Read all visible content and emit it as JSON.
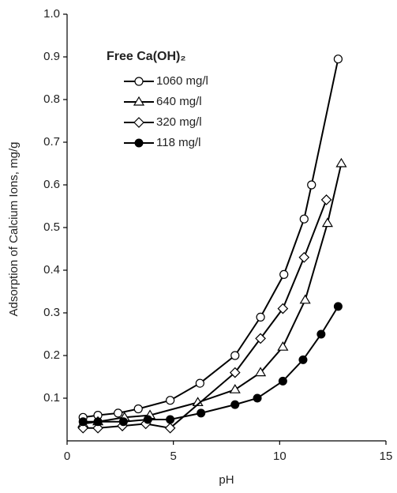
{
  "chart_data": {
    "type": "line",
    "xlabel": "pH",
    "ylabel": "Adsorption of Calcium Ions, mg/g",
    "legend_title": "Free Ca(OH)₂",
    "legend": "upper left",
    "xlim": [
      0,
      15
    ],
    "xticks": [
      0,
      5,
      10,
      15
    ],
    "ylim": [
      0,
      1
    ],
    "yticks": [
      0.1,
      0.2,
      0.3,
      0.4,
      0.5,
      0.6,
      0.7,
      0.8,
      0.9,
      {
        "value": 1,
        "label": "1.0"
      }
    ],
    "series": [
      {
        "name": "1060 mg/l",
        "color": "#000000",
        "marker": "circle-open",
        "x": [
          0.75,
          1.45,
          2.4,
          3.35,
          4.85,
          6.25,
          7.9,
          9.1,
          10.2,
          11.15,
          11.5,
          12.75
        ],
        "values": [
          0.055,
          0.06,
          0.065,
          0.075,
          0.095,
          0.135,
          0.2,
          0.29,
          0.39,
          0.52,
          0.6,
          0.895
        ]
      },
      {
        "name": "640 mg/l",
        "color": "#000000",
        "marker": "triangle-open",
        "x": [
          0.75,
          1.45,
          2.7,
          3.9,
          6.15,
          7.9,
          9.1,
          10.15,
          11.2,
          12.25,
          12.9
        ],
        "values": [
          0.04,
          0.045,
          0.055,
          0.06,
          0.09,
          0.12,
          0.16,
          0.22,
          0.33,
          0.51,
          0.65
        ]
      },
      {
        "name": "320 mg/l",
        "color": "#000000",
        "marker": "diamond-open",
        "x": [
          0.75,
          1.45,
          2.6,
          3.7,
          4.85,
          7.9,
          9.1,
          10.15,
          11.15,
          12.2
        ],
        "values": [
          0.03,
          0.03,
          0.035,
          0.04,
          0.03,
          0.16,
          0.24,
          0.31,
          0.43,
          0.565
        ]
      },
      {
        "name": "118 mg/l",
        "color": "#000000",
        "marker": "circle-filled",
        "x": [
          0.75,
          1.45,
          2.65,
          3.8,
          4.85,
          6.3,
          7.9,
          8.95,
          10.15,
          11.1,
          11.95,
          12.75
        ],
        "values": [
          0.045,
          0.045,
          0.045,
          0.05,
          0.05,
          0.065,
          0.085,
          0.1,
          0.14,
          0.19,
          0.25,
          0.315
        ]
      }
    ]
  }
}
